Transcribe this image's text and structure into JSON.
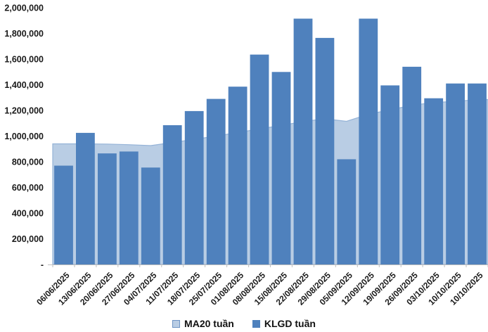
{
  "colors": {
    "bar": "#4F81BD",
    "area_fill": "#B9CDE4",
    "area_border": "#95B3D7",
    "axis_line": "#BFBFBF",
    "text": "#1a1a1a"
  },
  "legend": {
    "ma20_label": "MA20 tuần",
    "klgd_label": "KLGD tuần"
  },
  "chart_data": {
    "type": "bar",
    "subtype": "column+area combo",
    "title": "",
    "xlabel": "",
    "ylabel": "",
    "grid": false,
    "legend_position": "bottom",
    "ylim": [
      0,
      2000000
    ],
    "ytick_interval": 200000,
    "ytick_labels": [
      "-",
      "200,000",
      "400,000",
      "600,000",
      "800,000",
      "1,000,000",
      "1,200,000",
      "1,400,000",
      "1,600,000",
      "1,800,000",
      "2,000,000"
    ],
    "categories": [
      "06/06/2025",
      "13/06/2025",
      "20/06/2025",
      "27/06/2025",
      "04/07/2025",
      "11/07/2025",
      "18/07/2025",
      "25/07/2025",
      "01/08/2025",
      "08/08/2025",
      "15/08/2025",
      "22/08/2025",
      "29/08/2025",
      "05/09/2025",
      "12/09/2025",
      "19/09/2025",
      "26/09/2025",
      "03/10/2025",
      "10/10/2025",
      "10/10/2025"
    ],
    "series": [
      {
        "name": "MA20 tuần",
        "type": "area",
        "values": [
          940000,
          940000,
          938000,
          933000,
          926000,
          950000,
          975000,
          1000000,
          1028000,
          1056000,
          1083000,
          1113000,
          1135000,
          1115000,
          1170000,
          1205000,
          1240000,
          1262000,
          1270000,
          1285000
        ]
      },
      {
        "name": "KLGD tuần",
        "type": "column",
        "values": [
          770000,
          1025000,
          865000,
          880000,
          755000,
          1085000,
          1195000,
          1290000,
          1385000,
          1635000,
          1500000,
          1915000,
          1765000,
          820000,
          1915000,
          1395000,
          1540000,
          1295000,
          1410000,
          1410000
        ]
      }
    ]
  }
}
